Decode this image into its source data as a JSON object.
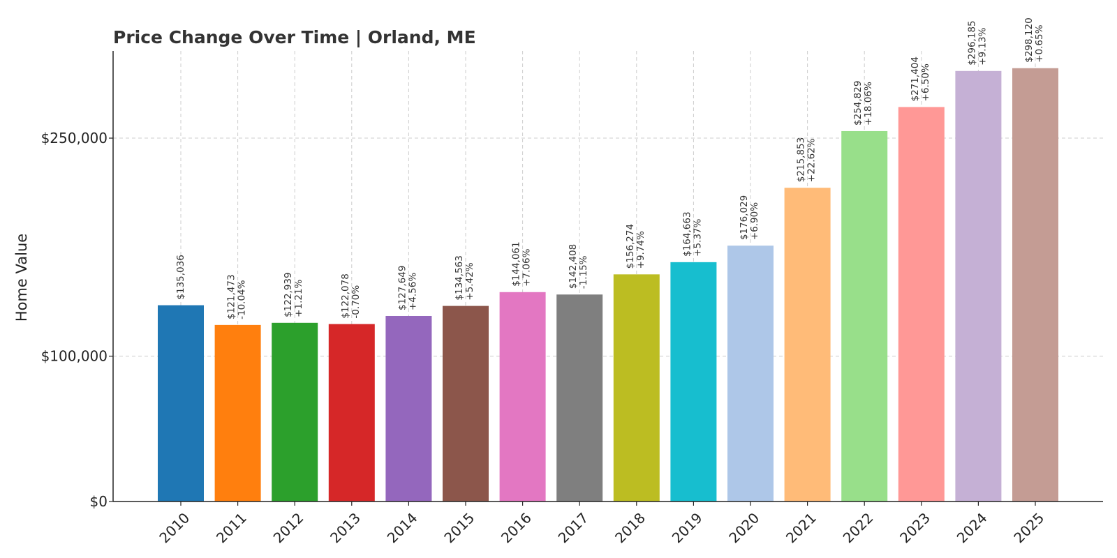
{
  "chart_data": {
    "type": "bar",
    "title": "Price Change Over Time | Orland, ME",
    "xlabel": "",
    "ylabel": "Home Value",
    "ylim": [
      0,
      310000
    ],
    "yticks": [
      {
        "value": 0,
        "label": "$0"
      },
      {
        "value": 100000,
        "label": "$100,000"
      },
      {
        "value": 250000,
        "label": "$250,000"
      }
    ],
    "grid": true,
    "categories": [
      "2010",
      "2011",
      "2012",
      "2013",
      "2014",
      "2015",
      "2016",
      "2017",
      "2018",
      "2019",
      "2020",
      "2021",
      "2022",
      "2023",
      "2024",
      "2025"
    ],
    "values": [
      135036,
      121473,
      122939,
      122078,
      127649,
      134563,
      144061,
      142408,
      156274,
      164663,
      176029,
      215853,
      254829,
      271404,
      296185,
      298120
    ],
    "value_labels": [
      "$135,036",
      "$121,473",
      "$122,939",
      "$122,078",
      "$127,649",
      "$134,563",
      "$144,061",
      "$142,408",
      "$156,274",
      "$164,663",
      "$176,029",
      "$215,853",
      "$254,829",
      "$271,404",
      "$296,185",
      "$298,120"
    ],
    "change_labels": [
      "",
      "-10.04%",
      "+1.21%",
      "-0.70%",
      "+4.56%",
      "+5.42%",
      "+7.06%",
      "-1.15%",
      "+9.74%",
      "+5.37%",
      "+6.90%",
      "+22.62%",
      "+18.06%",
      "+6.50%",
      "+9.13%",
      "+0.65%"
    ],
    "colors": [
      "#1f77b4",
      "#ff7f0e",
      "#2ca02c",
      "#d62728",
      "#9467bd",
      "#8c564b",
      "#e377c2",
      "#7f7f7f",
      "#bcbd22",
      "#17becf",
      "#aec7e8",
      "#ffbb78",
      "#98df8a",
      "#ff9896",
      "#c5b0d5",
      "#c49c94"
    ]
  }
}
